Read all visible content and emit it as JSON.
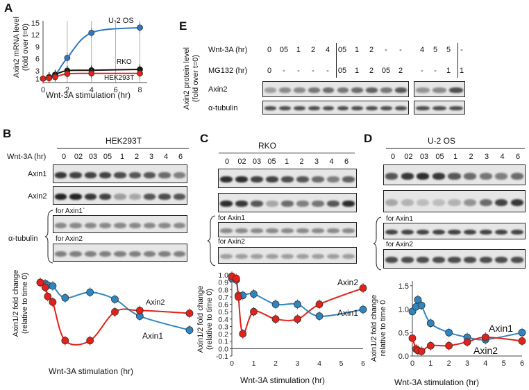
{
  "panelA": {
    "label": "A",
    "ylabel1": "Axin2 mRNA level",
    "ylabel2": "(fold over t=0)",
    "xlabel": "Wnt-3A stimulation (hr)",
    "series_labels": [
      "U-2 OS",
      "RKO",
      "HEK293T"
    ]
  },
  "panelE": {
    "label": "E",
    "ylabel1": "Axin2 protein level",
    "ylabel2": "(fold over t=0)",
    "row1_label": "Wnt-3A (hr)",
    "row2_label": "MG132 (hr)",
    "row1": [
      "0",
      "05",
      "1",
      "2",
      "4",
      "05",
      "1",
      "2",
      "-",
      "-"
    ],
    "row2": [
      "0",
      "-",
      "-",
      "-",
      "-",
      "05",
      "1",
      "2",
      "05",
      "2"
    ],
    "row1_right": [
      "4",
      "5",
      "5",
      "-"
    ],
    "row2_right": [
      "-",
      "-",
      "1",
      "1"
    ],
    "blot1": "Axin2",
    "blot2": "α-tubulin"
  },
  "panelB": {
    "label": "B",
    "cell": "HEK293T",
    "lane_label": "Wnt-3A (hr)",
    "lanes": [
      "0",
      "02",
      "03",
      "05",
      "1",
      "2",
      "3",
      "4",
      "6"
    ],
    "blot1": "Axin1",
    "blot2": "Axin2",
    "loading": "α-tubulin",
    "for1": "for Axin1`",
    "for2": "for Axin2",
    "ylabel1": "Axin1/2 fold change",
    "ylabel2": "(relative to time 0)",
    "xlabel": "Wnt-3A  stimulation (hr)",
    "series_labels": [
      "Axin2",
      "Axin1"
    ]
  },
  "panelC": {
    "label": "C",
    "cell": "RKO",
    "lanes": [
      "0",
      "02",
      "03",
      "05",
      "1",
      "2",
      "3",
      "4",
      "6"
    ],
    "for1": "for Axin1",
    "for2": "for Axin2",
    "ylabel1": "Axin1/2 fold change",
    "ylabel2": "(relative to time 0)",
    "xlabel": "Wnt-3A  stimulation (hr)",
    "series_labels": [
      "Axin2",
      "Axin1"
    ]
  },
  "panelD": {
    "label": "D",
    "cell": "U-2 OS",
    "lanes": [
      "0",
      "02",
      "03",
      "05",
      "1",
      "2",
      "3",
      "4",
      "6"
    ],
    "for1": "for Axin1",
    "for2": "for Axin2",
    "ylabel1": "Axin1/2 fold change",
    "ylabel2": "relative to time 0",
    "xlabel": "Wnt-3A  stimulation (hr)",
    "series_labels": [
      "Axin1",
      "Axin2"
    ]
  },
  "colors": {
    "blue": "#2f78c4",
    "red": "#e32119",
    "black": "#111111",
    "teal": "#2e86c1"
  },
  "chart_data": [
    {
      "id": "A",
      "type": "line",
      "title": "",
      "xlabel": "Wnt-3A stimulation (hr)",
      "ylabel": "Axin2 mRNA level (fold over t=0)",
      "xticks": [
        0,
        2,
        4,
        6,
        8
      ],
      "yticks": [
        1,
        3,
        6,
        9,
        12,
        15
      ],
      "xlim": [
        0,
        8.6
      ],
      "ylim": [
        0,
        15.5
      ],
      "series": [
        {
          "name": "U-2 OS",
          "color": "blue",
          "x": [
            0,
            0.5,
            1,
            2,
            4,
            8
          ],
          "y": [
            1,
            1.2,
            1.8,
            6.2,
            12.5,
            13.8
          ]
        },
        {
          "name": "RKO",
          "color": "black",
          "x": [
            0,
            0.5,
            1,
            2,
            4,
            8
          ],
          "y": [
            1,
            1.4,
            2,
            3,
            3.1,
            3.3
          ]
        },
        {
          "name": "HEK293T",
          "color": "red",
          "x": [
            0,
            0.5,
            1,
            2,
            4,
            8
          ],
          "y": [
            1,
            1.1,
            1.4,
            2.2,
            2.3,
            2.3
          ]
        }
      ]
    },
    {
      "id": "B",
      "type": "line",
      "xlabel": "Wnt-3A  stimulation (hr)",
      "ylabel": "Axin1/2 fold change (relative to time 0)",
      "xlim": [
        0,
        6
      ],
      "ylim": [
        0,
        1.05
      ],
      "series": [
        {
          "name": "Axin1",
          "color": "teal",
          "x": [
            0,
            0.2,
            0.3,
            0.5,
            1,
            2,
            3,
            4,
            6
          ],
          "y": [
            1,
            0.98,
            0.96,
            0.95,
            0.78,
            0.86,
            0.76,
            0.52,
            0.32
          ]
        },
        {
          "name": "Axin2",
          "color": "red",
          "x": [
            0,
            0.2,
            0.3,
            0.5,
            1,
            2,
            3,
            4,
            6
          ],
          "y": [
            1,
            0.93,
            0.8,
            0.72,
            0.17,
            0.17,
            0.58,
            0.6,
            0.56
          ]
        }
      ]
    },
    {
      "id": "C",
      "type": "line",
      "xlabel": "Wnt-3A  stimulation (hr)",
      "ylabel": "Axin1/2 fold change (relative to time 0)",
      "xticks": [
        0,
        1,
        2,
        3,
        4,
        5,
        6
      ],
      "yticks": [
        -0.1,
        0,
        0.1,
        0.2,
        0.3,
        0.4,
        0.5,
        0.6,
        0.7,
        0.8,
        0.9,
        1
      ],
      "xlim": [
        0,
        6
      ],
      "ylim": [
        -0.1,
        1
      ],
      "series": [
        {
          "name": "Axin1",
          "color": "teal",
          "x": [
            0,
            0.2,
            0.3,
            0.5,
            1,
            2,
            3,
            4,
            6
          ],
          "y": [
            0.95,
            0.93,
            0.72,
            0.72,
            0.74,
            0.6,
            0.6,
            0.44,
            0.53
          ]
        },
        {
          "name": "Axin2",
          "color": "red",
          "x": [
            0,
            0.2,
            0.3,
            0.5,
            1,
            2,
            3,
            4,
            6
          ],
          "y": [
            0.98,
            0.95,
            0.7,
            0.2,
            0.5,
            0.4,
            0.4,
            0.6,
            0.82
          ]
        }
      ]
    },
    {
      "id": "D",
      "type": "line",
      "xlabel": "Wnt-3A  stimulation (hr)",
      "ylabel": "Axin1/2 fold change relative to time 0",
      "xticks": [
        0,
        1,
        2,
        3,
        4,
        5,
        6
      ],
      "yticks": [
        0,
        0.5,
        1,
        1.5
      ],
      "xlim": [
        0,
        6
      ],
      "ylim": [
        0,
        1.6
      ],
      "series": [
        {
          "name": "Axin1",
          "color": "teal",
          "x": [
            0,
            0.2,
            0.3,
            0.5,
            1,
            2,
            3,
            4,
            6
          ],
          "y": [
            0.95,
            1.05,
            1.2,
            1.08,
            0.7,
            0.5,
            0.4,
            0.35,
            0.5
          ]
        },
        {
          "name": "Axin2",
          "color": "red",
          "x": [
            0,
            0.2,
            0.3,
            0.5,
            1,
            2,
            3,
            4,
            6
          ],
          "y": [
            0.38,
            0.15,
            0.12,
            0.1,
            0.22,
            0.22,
            0.3,
            0.4,
            0.32
          ]
        }
      ]
    }
  ]
}
